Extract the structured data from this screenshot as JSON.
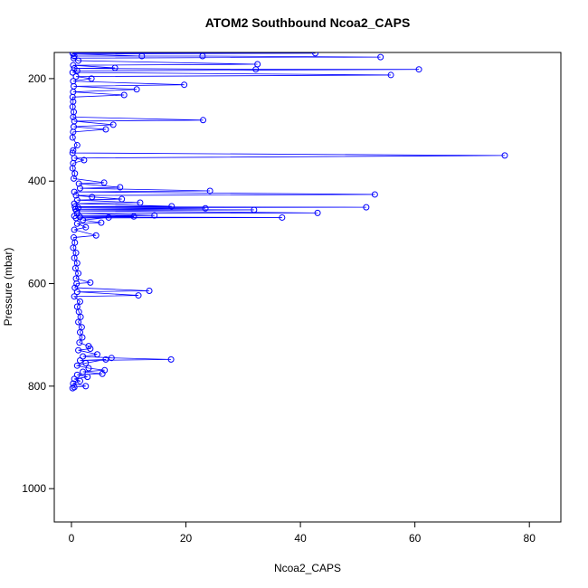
{
  "chart_data": {
    "type": "scatter",
    "title": "ATOM2 Southbound Ncoa2_CAPS",
    "x_label": "Ncoa2_CAPS",
    "y_label": "Pressure (mbar)",
    "color": "#0000ff",
    "xlim": [
      -3,
      85.5
    ],
    "ylim": [
      1065,
      149
    ],
    "xticks": [
      0,
      20,
      40,
      60,
      80
    ],
    "yticks": [
      200,
      400,
      600,
      800,
      1000
    ],
    "x": [
      0.2,
      42.6,
      0.3,
      12.3,
      0.5,
      22.9,
      54,
      0.4,
      1.2,
      32.5,
      0.3,
      7.6,
      0.5,
      32.2,
      60.7,
      1,
      0.2,
      55.8,
      0.8,
      3.5,
      0.3,
      19.7,
      0.4,
      11.4,
      0.3,
      9.2,
      0.2,
      0.3,
      0.2,
      0.4,
      0.3,
      23,
      0.5,
      7.3,
      0.4,
      6,
      0.3,
      0.2,
      1,
      0.3,
      0.2,
      75.7,
      0.5,
      2.2,
      0.3,
      0.2,
      0.6,
      0.4,
      5.7,
      1.3,
      8.5,
      1.5,
      24.2,
      0.5,
      53,
      0.8,
      3.6,
      8.8,
      1,
      12,
      0.5,
      17.5,
      0.6,
      51.5,
      1.2,
      23.4,
      0.7,
      31.9,
      0.9,
      43,
      1,
      14.5,
      0.5,
      10.9,
      1.5,
      36.8,
      0.8,
      6.5,
      2,
      5.2,
      1,
      2.5,
      0.5,
      4.3,
      0.4,
      0.6,
      0.3,
      0.8,
      0.5,
      1,
      0.7,
      1.2,
      0.8,
      3.3,
      0.9,
      0.6,
      13.6,
      1,
      11.7,
      0.5,
      1.5,
      1,
      1.3,
      1.6,
      1.2,
      1.8,
      1.5,
      1.9,
      1.4,
      3,
      3.3,
      1.2,
      4.5,
      2,
      7,
      17.4,
      1.5,
      6,
      2.5,
      1,
      3,
      5.8,
      2,
      5.4,
      1,
      2.8,
      0.5,
      1.5,
      0.3,
      2.5,
      0.5,
      0.2
    ],
    "y": [
      150,
      150.5,
      152,
      156,
      156,
      156,
      158,
      160,
      165,
      172,
      174,
      179,
      180,
      182,
      182,
      185,
      188,
      193,
      196,
      200,
      205,
      212,
      215,
      221,
      226,
      232,
      236,
      245,
      255,
      265,
      275,
      281,
      283,
      290,
      294,
      299,
      304,
      315,
      330,
      340,
      345,
      350,
      355,
      359,
      365,
      375,
      385,
      395,
      403,
      405,
      412,
      414,
      419,
      421,
      426,
      428,
      431,
      435,
      437,
      442,
      444,
      449,
      450,
      451,
      452,
      453,
      455,
      456,
      458,
      462,
      463,
      467,
      468,
      469,
      470,
      471,
      472,
      471,
      476,
      481,
      483,
      490,
      495,
      506,
      510,
      520,
      530,
      540,
      550,
      560,
      570,
      580,
      590,
      598,
      600,
      608,
      614,
      616,
      623,
      625,
      635,
      645,
      655,
      665,
      675,
      685,
      695,
      705,
      715,
      722,
      727,
      730,
      738,
      742,
      745,
      748,
      750,
      748,
      755,
      760,
      765,
      769,
      772,
      776,
      778,
      782,
      786,
      790,
      795,
      800,
      802,
      804
    ]
  }
}
